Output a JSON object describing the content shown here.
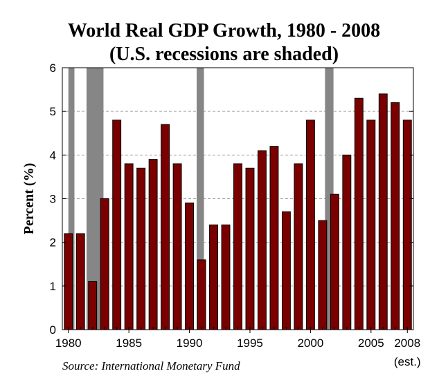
{
  "chart_data": {
    "type": "bar",
    "title_line1": "World Real GDP Growth, 1980 - 2008",
    "title_line2": "(U.S. recessions are shaded)",
    "ylabel": "Percent (%)",
    "xlabel": "",
    "ylim": [
      0,
      6
    ],
    "yticks": [
      0,
      1,
      2,
      3,
      4,
      5,
      6
    ],
    "xtick_labels": [
      {
        "year": 1980,
        "label": "1980"
      },
      {
        "year": 1985,
        "label": "1985"
      },
      {
        "year": 1990,
        "label": "1990"
      },
      {
        "year": 1995,
        "label": "1995"
      },
      {
        "year": 2000,
        "label": "2000"
      },
      {
        "year": 2005,
        "label": "2005"
      },
      {
        "year": 2008,
        "label": "2008"
      }
    ],
    "estimate_note": "(est.)",
    "categories": [
      1980,
      1981,
      1982,
      1983,
      1984,
      1985,
      1986,
      1987,
      1988,
      1989,
      1990,
      1991,
      1992,
      1993,
      1994,
      1995,
      1996,
      1997,
      1998,
      1999,
      2000,
      2001,
      2002,
      2003,
      2004,
      2005,
      2006,
      2007,
      2008
    ],
    "values": [
      2.2,
      2.2,
      1.1,
      3.0,
      4.8,
      3.8,
      3.7,
      3.9,
      4.7,
      3.8,
      2.9,
      1.6,
      2.4,
      2.4,
      3.8,
      3.7,
      4.1,
      4.2,
      2.7,
      3.8,
      4.8,
      2.5,
      3.1,
      4.0,
      5.3,
      4.8,
      5.4,
      5.2,
      4.8
    ],
    "recessions": [
      {
        "start": 1980,
        "end": 1980.5
      },
      {
        "start": 1981.5,
        "end": 1982.9
      },
      {
        "start": 1990.6,
        "end": 1991.2
      },
      {
        "start": 2001.2,
        "end": 2001.9
      }
    ],
    "grid": true,
    "colors": {
      "bar": "#7a0000",
      "bar_edge": "#000000",
      "recession": "#868686",
      "grid": "#a0a0a0"
    }
  },
  "source_text": "Source: International Monetary Fund"
}
